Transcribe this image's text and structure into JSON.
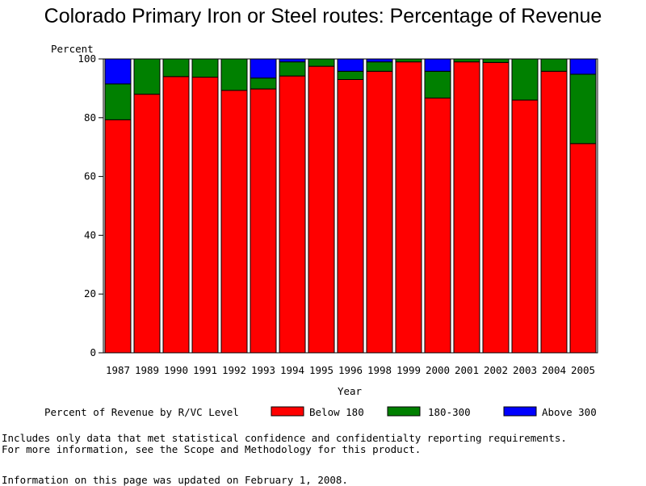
{
  "chart_data": {
    "type": "bar",
    "stacked": true,
    "title": "Colorado Primary Iron or Steel routes: Percentage of Revenue",
    "ylabel": "Percent",
    "xlabel": "Year",
    "ylim": [
      0,
      100
    ],
    "yticks": [
      "0",
      "20",
      "40",
      "60",
      "80",
      "100"
    ],
    "categories": [
      "1987",
      "1989",
      "1990",
      "1991",
      "1992",
      "1993",
      "1994",
      "1995",
      "1996",
      "1998",
      "1999",
      "2000",
      "2001",
      "2002",
      "2003",
      "2004",
      "2005"
    ],
    "legend_title": "Percent of Revenue by R/VC Level",
    "legend_position": "bottom",
    "series": [
      {
        "name": "Below 180",
        "color": "#ff0000",
        "values": [
          79.3,
          88.0,
          94.0,
          93.8,
          89.3,
          89.8,
          94.2,
          97.5,
          93.0,
          95.8,
          99.0,
          86.7,
          99.0,
          98.8,
          86.0,
          95.8,
          71.2
        ]
      },
      {
        "name": "180-300",
        "color": "#008000",
        "values": [
          12.2,
          12.0,
          6.0,
          6.2,
          10.7,
          3.7,
          4.8,
          2.5,
          2.8,
          3.2,
          1.0,
          9.1,
          1.0,
          1.2,
          14.0,
          4.2,
          23.6
        ]
      },
      {
        "name": "Above 300",
        "color": "#0000ff",
        "values": [
          8.5,
          0,
          0,
          0,
          0,
          6.5,
          1.0,
          0,
          4.2,
          1.0,
          0,
          4.2,
          0,
          0,
          0,
          0,
          5.2
        ]
      }
    ]
  },
  "notes": {
    "line1": "Includes only data that met statistical confidence and confidentialty reporting requirements.",
    "line2": "For more information, see the Scope and Methodology for this product.",
    "updated": "Information on this page was updated on February 1, 2008."
  }
}
